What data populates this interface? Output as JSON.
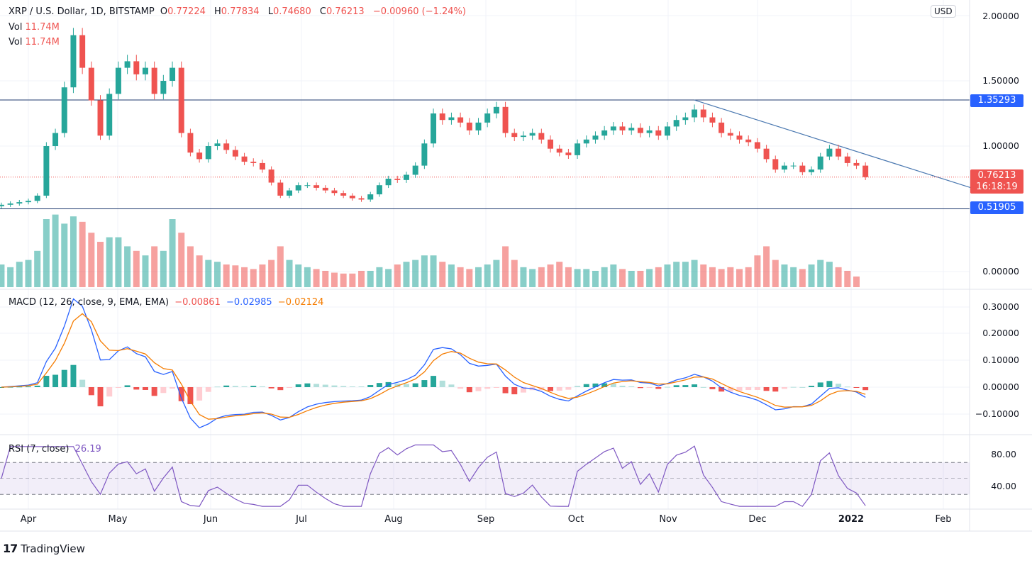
{
  "header": {
    "symbol": "XRP / U.S. Dollar, 1D, BITSTAMP",
    "o_label": "O",
    "o": "0.77224",
    "h_label": "H",
    "h": "0.77834",
    "l_label": "L",
    "l": "0.74680",
    "c_label": "C",
    "c": "0.76213",
    "change": "−0.00960 (−1.24%)",
    "vol_label": "Vol",
    "vol": "11.74M"
  },
  "macd_legend": {
    "title": "MACD (12, 26, close, 9, EMA, EMA)",
    "hist": "−0.00861",
    "macd": "−0.02985",
    "signal": "−0.02124"
  },
  "rsi_legend": {
    "title": "RSI (7, close)",
    "value": "26.19"
  },
  "currency_button": "USD",
  "price_tags": {
    "resistance": "1.35293",
    "support": "0.51905",
    "last": "0.76213",
    "countdown": "16:18:19"
  },
  "price_axis": [
    "2.00000",
    "1.50000",
    "1.00000",
    "0.00000"
  ],
  "macd_axis": [
    "0.30000",
    "0.20000",
    "0.10000",
    "0.00000",
    "−0.10000"
  ],
  "rsi_axis": [
    "80.00",
    "40.00"
  ],
  "time_axis": [
    "Apr",
    "May",
    "Jun",
    "Jul",
    "Aug",
    "Sep",
    "Oct",
    "Nov",
    "Dec",
    "2022",
    "Feb"
  ],
  "brand": "TradingView",
  "colors": {
    "up": "#26a69a",
    "down": "#ef5350",
    "macd": "#2962ff",
    "signal": "#f57c00",
    "rsi": "#7e57c2",
    "level": "#2962ff"
  },
  "chart_data": {
    "type": "candlestick",
    "price_scale": "linear",
    "horizontal_levels": [
      1.35293,
      0.51905
    ],
    "trendline": {
      "from": [
        "2021-11-09",
        1.353
      ],
      "to": [
        "2022-02-12",
        0.66
      ]
    },
    "last_price": 0.76213,
    "closes": [
      [
        "2021-03-23",
        0.55
      ],
      [
        "2021-03-26",
        0.56
      ],
      [
        "2021-03-29",
        0.57
      ],
      [
        "2021-04-01",
        0.58
      ],
      [
        "2021-04-04",
        0.62
      ],
      [
        "2021-04-07",
        1.0
      ],
      [
        "2021-04-10",
        1.1
      ],
      [
        "2021-04-13",
        1.45
      ],
      [
        "2021-04-16",
        1.85
      ],
      [
        "2021-04-19",
        1.6
      ],
      [
        "2021-04-22",
        1.35
      ],
      [
        "2021-04-25",
        1.08
      ],
      [
        "2021-04-28",
        1.4
      ],
      [
        "2021-05-01",
        1.6
      ],
      [
        "2021-05-04",
        1.65
      ],
      [
        "2021-05-07",
        1.55
      ],
      [
        "2021-05-10",
        1.6
      ],
      [
        "2021-05-13",
        1.4
      ],
      [
        "2021-05-16",
        1.5
      ],
      [
        "2021-05-19",
        1.6
      ],
      [
        "2021-05-22",
        1.1
      ],
      [
        "2021-05-25",
        0.95
      ],
      [
        "2021-05-28",
        0.9
      ],
      [
        "2021-05-31",
        1.0
      ],
      [
        "2021-06-03",
        1.02
      ],
      [
        "2021-06-06",
        0.97
      ],
      [
        "2021-06-09",
        0.92
      ],
      [
        "2021-06-12",
        0.88
      ],
      [
        "2021-06-15",
        0.87
      ],
      [
        "2021-06-18",
        0.82
      ],
      [
        "2021-06-21",
        0.72
      ],
      [
        "2021-06-24",
        0.62
      ],
      [
        "2021-06-27",
        0.66
      ],
      [
        "2021-06-30",
        0.7
      ],
      [
        "2021-07-03",
        0.7
      ],
      [
        "2021-07-06",
        0.68
      ],
      [
        "2021-07-09",
        0.66
      ],
      [
        "2021-07-12",
        0.64
      ],
      [
        "2021-07-15",
        0.62
      ],
      [
        "2021-07-18",
        0.6
      ],
      [
        "2021-07-21",
        0.59
      ],
      [
        "2021-07-24",
        0.63
      ],
      [
        "2021-07-27",
        0.7
      ],
      [
        "2021-07-30",
        0.75
      ],
      [
        "2021-08-02",
        0.74
      ],
      [
        "2021-08-05",
        0.78
      ],
      [
        "2021-08-08",
        0.85
      ],
      [
        "2021-08-11",
        1.02
      ],
      [
        "2021-08-14",
        1.25
      ],
      [
        "2021-08-17",
        1.2
      ],
      [
        "2021-08-20",
        1.22
      ],
      [
        "2021-08-23",
        1.18
      ],
      [
        "2021-08-26",
        1.12
      ],
      [
        "2021-08-29",
        1.18
      ],
      [
        "2021-09-01",
        1.25
      ],
      [
        "2021-09-04",
        1.3
      ],
      [
        "2021-09-07",
        1.1
      ],
      [
        "2021-09-10",
        1.07
      ],
      [
        "2021-09-13",
        1.08
      ],
      [
        "2021-09-16",
        1.1
      ],
      [
        "2021-09-19",
        1.05
      ],
      [
        "2021-09-22",
        0.98
      ],
      [
        "2021-09-25",
        0.95
      ],
      [
        "2021-09-28",
        0.93
      ],
      [
        "2021-10-01",
        1.02
      ],
      [
        "2021-10-04",
        1.05
      ],
      [
        "2021-10-07",
        1.08
      ],
      [
        "2021-10-10",
        1.12
      ],
      [
        "2021-10-13",
        1.15
      ],
      [
        "2021-10-16",
        1.12
      ],
      [
        "2021-10-19",
        1.14
      ],
      [
        "2021-10-22",
        1.1
      ],
      [
        "2021-10-25",
        1.12
      ],
      [
        "2021-10-28",
        1.08
      ],
      [
        "2021-10-31",
        1.15
      ],
      [
        "2021-11-03",
        1.2
      ],
      [
        "2021-11-06",
        1.22
      ],
      [
        "2021-11-09",
        1.28
      ],
      [
        "2021-11-12",
        1.22
      ],
      [
        "2021-11-15",
        1.18
      ],
      [
        "2021-11-18",
        1.1
      ],
      [
        "2021-11-21",
        1.08
      ],
      [
        "2021-11-24",
        1.05
      ],
      [
        "2021-11-27",
        1.03
      ],
      [
        "2021-11-30",
        0.98
      ],
      [
        "2021-12-03",
        0.9
      ],
      [
        "2021-12-06",
        0.82
      ],
      [
        "2021-12-09",
        0.85
      ],
      [
        "2021-12-12",
        0.85
      ],
      [
        "2021-12-15",
        0.8
      ],
      [
        "2021-12-18",
        0.82
      ],
      [
        "2021-12-21",
        0.92
      ],
      [
        "2021-12-24",
        0.98
      ],
      [
        "2021-12-27",
        0.92
      ],
      [
        "2021-12-30",
        0.87
      ],
      [
        "2022-01-02",
        0.85
      ],
      [
        "2022-01-05",
        0.76213
      ]
    ],
    "volume_millions": [
      25,
      22,
      28,
      30,
      40,
      75,
      80,
      70,
      78,
      72,
      60,
      50,
      55,
      55,
      45,
      40,
      35,
      45,
      40,
      75,
      60,
      45,
      35,
      30,
      28,
      25,
      24,
      22,
      20,
      25,
      30,
      45,
      30,
      25,
      22,
      20,
      18,
      16,
      15,
      15,
      18,
      18,
      22,
      20,
      25,
      28,
      30,
      35,
      35,
      28,
      25,
      22,
      20,
      22,
      25,
      30,
      45,
      30,
      22,
      20,
      22,
      25,
      28,
      22,
      20,
      20,
      18,
      22,
      25,
      20,
      18,
      18,
      20,
      22,
      25,
      28,
      28,
      30,
      25,
      22,
      20,
      22,
      20,
      22,
      35,
      45,
      30,
      25,
      22,
      20,
      25,
      30,
      28,
      22,
      18,
      11.74
    ],
    "rsi_levels": [
      70,
      50,
      30
    ]
  }
}
